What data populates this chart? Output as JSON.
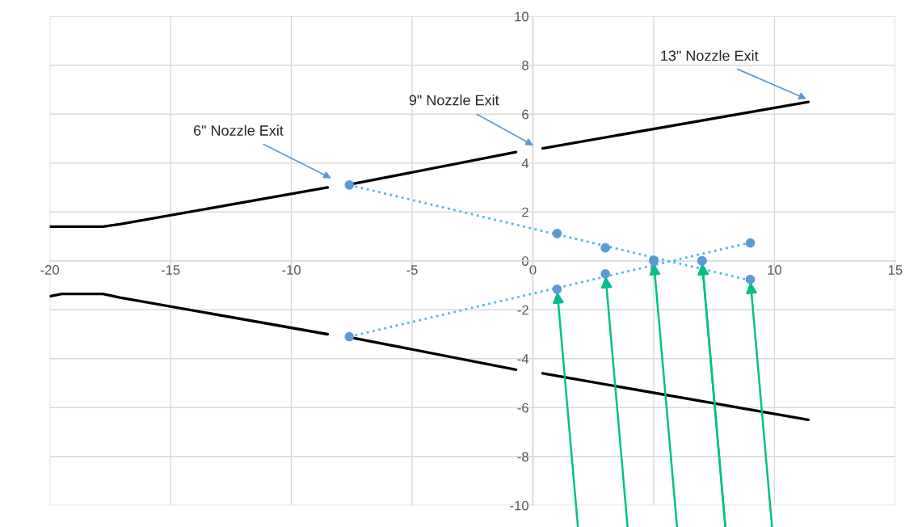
{
  "chart_data": {
    "type": "line",
    "xlim": [
      -20,
      15
    ],
    "ylim": [
      -10,
      10
    ],
    "xticks": [
      -20,
      -15,
      -10,
      -5,
      0,
      5,
      10,
      15
    ],
    "yticks": [
      -10,
      -8,
      -6,
      -4,
      -2,
      0,
      2,
      4,
      6,
      8,
      10
    ],
    "grid": true,
    "legend": false,
    "series": [
      {
        "color": "#000000",
        "line_style": "solid",
        "marker": "none",
        "x": [
          -20,
          -17.8,
          -17.1,
          -8.5,
          -8.1,
          -7.7,
          -0.7,
          -0.1,
          0.4,
          11.4
        ],
        "values": [
          1.4,
          1.4,
          1.5,
          3.0,
          null,
          3.1,
          4.45,
          null,
          4.6,
          6.5
        ]
      },
      {
        "color": "#000000",
        "line_style": "solid",
        "marker": "none",
        "x": [
          -20,
          -19.5,
          -17.8,
          -17.1,
          -8.5,
          -8.1,
          -7.7,
          -0.7,
          -0.1,
          0.4,
          11.4
        ],
        "values": [
          -1.45,
          -1.35,
          -1.35,
          -1.5,
          -3.0,
          null,
          -3.1,
          -4.45,
          null,
          -4.6,
          -6.5
        ]
      },
      {
        "color": "#4db8e8",
        "line_style": "dotted",
        "marker": "none",
        "x": [
          -7.6,
          9
        ],
        "values": [
          3.1,
          -0.8
        ]
      },
      {
        "color": "#4db8e8",
        "line_style": "dotted",
        "marker": "none",
        "x": [
          -7.6,
          9
        ],
        "values": [
          -3.1,
          0.75
        ]
      },
      {
        "type": "scatter",
        "color": "#5b9bd5",
        "marker": "circle",
        "x": [
          -7.6,
          1,
          3,
          5,
          7,
          9
        ],
        "values": [
          3.1,
          1.12,
          0.53,
          0.03,
          0,
          -0.76
        ]
      },
      {
        "type": "scatter",
        "color": "#5b9bd5",
        "marker": "circle",
        "x": [
          -7.6,
          1,
          3,
          5,
          7,
          9
        ],
        "values": [
          -3.1,
          -1.16,
          -0.53,
          0,
          0,
          0.73
        ]
      }
    ],
    "annotations": [
      "6\" Nozzle Exit",
      "9\" Nozzle Exit",
      "13\" Nozzle Exit"
    ]
  }
}
